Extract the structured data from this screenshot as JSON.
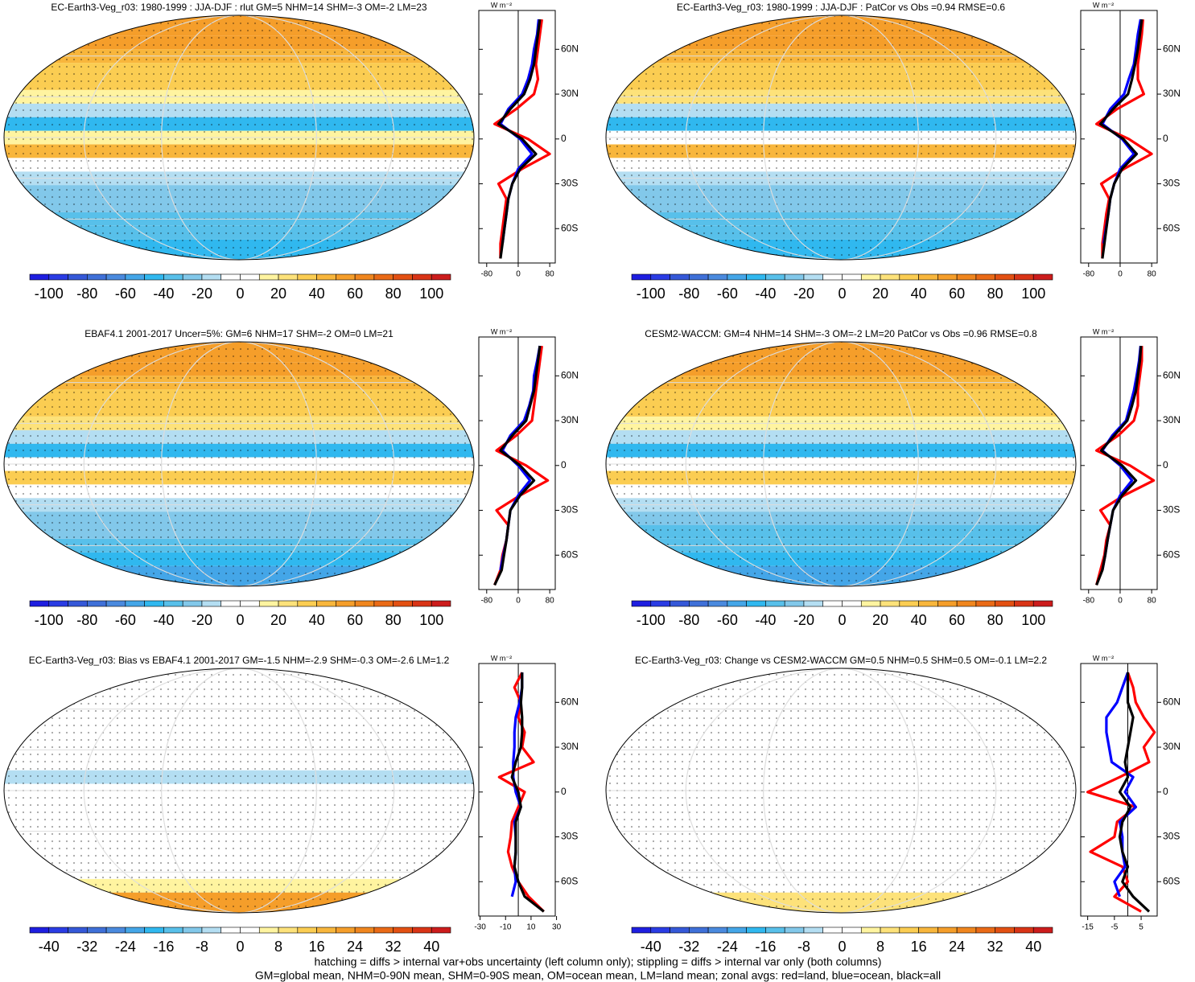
{
  "chart_data": [
    {
      "type": "map",
      "title": "EC-Earth3-Veg_r03: 1980-1999 : JJA-DJF : rlut GM=5 NHM=14 SHM=-3 OM=-2 LM=23",
      "colorbar": {
        "lim": [
          -110,
          110
        ],
        "ticks": [
          -100,
          -80,
          -60,
          -40,
          -20,
          0,
          20,
          40,
          60,
          80,
          100
        ],
        "colors": [
          "#1e1ee0",
          "#2a3ce4",
          "#3558d8",
          "#3f70d8",
          "#4a8ade",
          "#44a6e8",
          "#30b8ef",
          "#58c0ea",
          "#82c8ea",
          "#b4def2",
          "#ffffff",
          "#ffffff",
          "#fff4a0",
          "#fde27a",
          "#fbcd52",
          "#f8b63c",
          "#f59e2a",
          "#f0861e",
          "#ea6a16",
          "#e35012",
          "#d93416",
          "#cc1c1c"
        ]
      },
      "profile": {
        "xlabel": "W m⁻²",
        "xlim": [
          -100,
          94
        ],
        "xticks": [
          -80,
          0,
          80
        ],
        "ylim": [
          -83,
          86
        ],
        "yticks": [
          {
            "value": 60,
            "label": "60N"
          },
          {
            "value": 30,
            "label": "30N"
          },
          0,
          {
            "value": -30,
            "label": "30S"
          },
          {
            "value": -60,
            "label": "60S"
          }
        ],
        "lat": [
          -80,
          -70,
          -60,
          -50,
          -40,
          -30,
          -20,
          -10,
          0,
          10,
          20,
          30,
          40,
          50,
          60,
          70,
          80
        ],
        "series": [
          {
            "color": "#ff0000",
            "values": [
              -45,
              -45,
              -40,
              -35,
              -30,
              -50,
              10,
              80,
              25,
              -60,
              -5,
              40,
              50,
              45,
              50,
              55,
              60
            ]
          },
          {
            "color": "#0000ff",
            "values": [
              null,
              -40,
              -35,
              -30,
              -25,
              -15,
              0,
              35,
              5,
              -45,
              -25,
              10,
              25,
              35,
              40,
              48,
              52
            ]
          },
          {
            "color": "#000000",
            "values": [
              -45,
              -40,
              -35,
              -30,
              -25,
              -15,
              5,
              45,
              10,
              -50,
              -20,
              15,
              30,
              40,
              45,
              50,
              55
            ]
          }
        ]
      }
    },
    {
      "type": "map",
      "title": "EC-Earth3-Veg_r03: 1980-1999 : JJA-DJF : PatCor vs Obs =0.94 RMSE=0.6",
      "colorbar": {
        "lim": [
          -110,
          110
        ],
        "ticks": [
          -100,
          -80,
          -60,
          -40,
          -20,
          0,
          20,
          40,
          60,
          80,
          100
        ],
        "colors": [
          "#1e1ee0",
          "#2a3ce4",
          "#3558d8",
          "#3f70d8",
          "#4a8ade",
          "#44a6e8",
          "#30b8ef",
          "#58c0ea",
          "#82c8ea",
          "#b4def2",
          "#ffffff",
          "#ffffff",
          "#fff4a0",
          "#fde27a",
          "#fbcd52",
          "#f8b63c",
          "#f59e2a",
          "#f0861e",
          "#ea6a16",
          "#e35012",
          "#d93416",
          "#cc1c1c"
        ]
      },
      "profile": {
        "xlabel": "W m⁻²",
        "xlim": [
          -100,
          94
        ],
        "xticks": [
          -80,
          0,
          80
        ],
        "ylim": [
          -83,
          86
        ],
        "yticks": [
          {
            "value": 60,
            "label": "60N"
          },
          {
            "value": 30,
            "label": "30N"
          },
          0,
          {
            "value": -30,
            "label": "30S"
          },
          {
            "value": -60,
            "label": "60S"
          }
        ],
        "lat": [
          -80,
          -70,
          -60,
          -50,
          -40,
          -30,
          -20,
          -10,
          0,
          10,
          20,
          30,
          40,
          50,
          60,
          70,
          80
        ],
        "series": [
          {
            "color": "#ff0000",
            "values": [
              -45,
              -45,
              -40,
              -35,
              -28,
              -48,
              10,
              80,
              22,
              -60,
              -8,
              60,
              45,
              45,
              50,
              55,
              58
            ]
          },
          {
            "color": "#0000ff",
            "values": [
              null,
              -42,
              -36,
              -30,
              -25,
              -15,
              0,
              35,
              5,
              -45,
              -25,
              10,
              22,
              35,
              40,
              45,
              52
            ]
          },
          {
            "color": "#000000",
            "values": [
              -45,
              -40,
              -35,
              -30,
              -25,
              -15,
              5,
              42,
              8,
              -50,
              -18,
              20,
              30,
              38,
              45,
              50,
              55
            ]
          }
        ]
      }
    },
    {
      "type": "map",
      "title": "EBAF4.1 2001-2017 Uncer=5%: GM=6 NHM=17 SHM=-2 OM=0 LM=21",
      "colorbar": {
        "lim": [
          -110,
          110
        ],
        "ticks": [
          -100,
          -80,
          -60,
          -40,
          -20,
          0,
          20,
          40,
          60,
          80,
          100
        ],
        "colors": [
          "#1e1ee0",
          "#2a3ce4",
          "#3558d8",
          "#3f70d8",
          "#4a8ade",
          "#44a6e8",
          "#30b8ef",
          "#58c0ea",
          "#82c8ea",
          "#b4def2",
          "#ffffff",
          "#ffffff",
          "#fff4a0",
          "#fde27a",
          "#fbcd52",
          "#f8b63c",
          "#f59e2a",
          "#f0861e",
          "#ea6a16",
          "#e35012",
          "#d93416",
          "#cc1c1c"
        ]
      },
      "profile": {
        "xlabel": "W m⁻²",
        "xlim": [
          -100,
          94
        ],
        "xticks": [
          -80,
          0,
          80
        ],
        "ylim": [
          -83,
          86
        ],
        "yticks": [
          {
            "value": 60,
            "label": "60N"
          },
          {
            "value": 30,
            "label": "30N"
          },
          0,
          {
            "value": -30,
            "label": "30S"
          },
          {
            "value": -60,
            "label": "60S"
          }
        ],
        "lat": [
          -80,
          -70,
          -60,
          -50,
          -40,
          -30,
          -20,
          -10,
          0,
          10,
          20,
          30,
          40,
          50,
          60,
          70,
          80
        ],
        "series": [
          {
            "color": "#ff0000",
            "values": [
              -60,
              -45,
              -40,
              -30,
              -25,
              -55,
              5,
              75,
              20,
              -55,
              -5,
              35,
              40,
              45,
              50,
              55,
              60
            ]
          },
          {
            "color": "#0000ff",
            "values": [
              null,
              -45,
              -38,
              -30,
              -25,
              -20,
              0,
              30,
              0,
              -40,
              -20,
              15,
              28,
              38,
              40,
              48,
              55
            ]
          },
          {
            "color": "#000000",
            "values": [
              -60,
              -42,
              -36,
              -30,
              -25,
              -20,
              5,
              40,
              5,
              -45,
              -15,
              20,
              30,
              40,
              45,
              50,
              55
            ]
          }
        ]
      }
    },
    {
      "type": "map",
      "title": "CESM2-WACCM: GM=4 NHM=14 SHM=-3 OM=-2 LM=20 PatCor vs Obs =0.96 RMSE=0.8",
      "colorbar": {
        "lim": [
          -110,
          110
        ],
        "ticks": [
          -100,
          -80,
          -60,
          -40,
          -20,
          0,
          20,
          40,
          60,
          80,
          100
        ],
        "colors": [
          "#1e1ee0",
          "#2a3ce4",
          "#3558d8",
          "#3f70d8",
          "#4a8ade",
          "#44a6e8",
          "#30b8ef",
          "#58c0ea",
          "#82c8ea",
          "#b4def2",
          "#ffffff",
          "#ffffff",
          "#fff4a0",
          "#fde27a",
          "#fbcd52",
          "#f8b63c",
          "#f59e2a",
          "#f0861e",
          "#ea6a16",
          "#e35012",
          "#d93416",
          "#cc1c1c"
        ]
      },
      "profile": {
        "xlabel": "W m⁻²",
        "xlim": [
          -100,
          94
        ],
        "xticks": [
          -80,
          0,
          80
        ],
        "ylim": [
          -83,
          86
        ],
        "yticks": [
          {
            "value": 60,
            "label": "60N"
          },
          {
            "value": 30,
            "label": "30N"
          },
          0,
          {
            "value": -30,
            "label": "30S"
          },
          {
            "value": -60,
            "label": "60S"
          }
        ],
        "lat": [
          -80,
          -70,
          -60,
          -50,
          -40,
          -30,
          -20,
          -10,
          0,
          10,
          20,
          30,
          40,
          50,
          60,
          70,
          80
        ],
        "series": [
          {
            "color": "#ff0000",
            "values": [
              -60,
              -50,
              -40,
              -35,
              -25,
              -50,
              10,
              85,
              25,
              -60,
              -5,
              35,
              45,
              45,
              50,
              55,
              55
            ]
          },
          {
            "color": "#0000ff",
            "values": [
              null,
              -45,
              -38,
              -32,
              -25,
              -18,
              0,
              30,
              0,
              -45,
              -20,
              15,
              25,
              35,
              42,
              48,
              52
            ]
          },
          {
            "color": "#000000",
            "values": [
              -60,
              -45,
              -38,
              -32,
              -25,
              -18,
              5,
              40,
              5,
              -48,
              -15,
              18,
              30,
              40,
              45,
              50,
              53
            ]
          }
        ]
      }
    },
    {
      "type": "map",
      "title": "EC-Earth3-Veg_r03: Bias vs EBAF4.1 2001-2017 GM=-1.5 NHM=-2.9 SHM=-0.3 OM=-2.6 LM=1.2",
      "colorbar": {
        "lim": [
          -44,
          44
        ],
        "ticks": [
          -40,
          -32,
          -24,
          -16,
          -8,
          0,
          8,
          16,
          24,
          32,
          40
        ],
        "colors": [
          "#1e1ee0",
          "#2a3ce4",
          "#3558d8",
          "#3f70d8",
          "#4a8ade",
          "#44a6e8",
          "#30b8ef",
          "#58c0ea",
          "#82c8ea",
          "#b4def2",
          "#ffffff",
          "#ffffff",
          "#fff4a0",
          "#fde27a",
          "#fbcd52",
          "#f8b63c",
          "#f59e2a",
          "#f0861e",
          "#ea6a16",
          "#e35012",
          "#d93416",
          "#cc1c1c"
        ]
      },
      "profile": {
        "xlabel": "W m⁻²",
        "xlim": [
          -31,
          29
        ],
        "xticks": [
          -30,
          -10,
          10,
          30
        ],
        "ylim": [
          -83,
          86
        ],
        "yticks": [
          {
            "value": 60,
            "label": "60N"
          },
          {
            "value": 30,
            "label": "30N"
          },
          0,
          {
            "value": -30,
            "label": "30S"
          },
          {
            "value": -60,
            "label": "60S"
          }
        ],
        "lat": [
          -80,
          -70,
          -60,
          -50,
          -40,
          -30,
          -20,
          -10,
          0,
          10,
          20,
          30,
          40,
          50,
          60,
          70,
          80
        ],
        "series": [
          {
            "color": "#ff0000",
            "values": [
              20,
              8,
              0,
              -5,
              -8,
              -6,
              -5,
              0,
              5,
              -15,
              12,
              3,
              5,
              0,
              2,
              -3,
              3
            ]
          },
          {
            "color": "#0000ff",
            "values": [
              null,
              -5,
              -2,
              -3,
              -2,
              -2,
              -3,
              2,
              -2,
              -4,
              -4,
              -3,
              -3,
              -2,
              1,
              3,
              3
            ]
          },
          {
            "color": "#000000",
            "values": [
              20,
              5,
              0,
              -3,
              -2,
              -2,
              -2,
              2,
              0,
              -5,
              -2,
              2,
              3,
              3,
              2,
              3,
              3
            ]
          }
        ]
      }
    },
    {
      "type": "map",
      "title": "EC-Earth3-Veg_r03: Change vs CESM2-WACCM GM=0.5 NHM=0.5 SHM=0.5 OM=-0.1 LM=2.2",
      "colorbar": {
        "lim": [
          -44,
          44
        ],
        "ticks": [
          -40,
          -32,
          -24,
          -16,
          -8,
          0,
          8,
          16,
          24,
          32,
          40
        ],
        "colors": [
          "#1e1ee0",
          "#2a3ce4",
          "#3558d8",
          "#3f70d8",
          "#4a8ade",
          "#44a6e8",
          "#30b8ef",
          "#58c0ea",
          "#82c8ea",
          "#b4def2",
          "#ffffff",
          "#ffffff",
          "#fff4a0",
          "#fde27a",
          "#fbcd52",
          "#f8b63c",
          "#f59e2a",
          "#f0861e",
          "#ea6a16",
          "#e35012",
          "#d93416",
          "#cc1c1c"
        ]
      },
      "profile": {
        "xlabel": "W m⁻²",
        "xlim": [
          -17.6,
          11
        ],
        "xticks": [
          -15,
          -5,
          5
        ],
        "ylim": [
          -83,
          86
        ],
        "yticks": [
          {
            "value": 60,
            "label": "60N"
          },
          {
            "value": 30,
            "label": "30N"
          },
          0,
          {
            "value": -30,
            "label": "30S"
          },
          {
            "value": -60,
            "label": "60S"
          }
        ],
        "lat": [
          -80,
          -70,
          -60,
          -50,
          -40,
          -30,
          -20,
          -10,
          0,
          10,
          20,
          30,
          40,
          50,
          60,
          70,
          80
        ],
        "series": [
          {
            "color": "#ff0000",
            "values": [
              5,
              -5,
              0,
              -2,
              -14,
              -5,
              -4,
              3,
              -15,
              -3,
              8,
              6,
              10,
              6,
              3,
              2,
              0
            ]
          },
          {
            "color": "#0000ff",
            "values": [
              null,
              -3,
              -5,
              -1,
              -2,
              -2,
              -3,
              3,
              -1,
              2,
              -6,
              -7,
              -8,
              -8,
              -4,
              -2,
              0
            ]
          },
          {
            "color": "#000000",
            "values": [
              8,
              2,
              -2,
              0,
              -2,
              -3,
              -2,
              1,
              -3,
              0,
              -1,
              0,
              1,
              2,
              0,
              0,
              0
            ]
          }
        ]
      }
    }
  ],
  "notes": [
    "hatching = diffs > internal var+obs uncertainty (left column only); stippling = diffs > internal var only (both columns)",
    "GM=global mean, NHM=0-90N mean, SHM=0-90S mean, OM=ocean mean, LM=land mean; zonal avgs: red=land, blue=ocean, black=all"
  ]
}
